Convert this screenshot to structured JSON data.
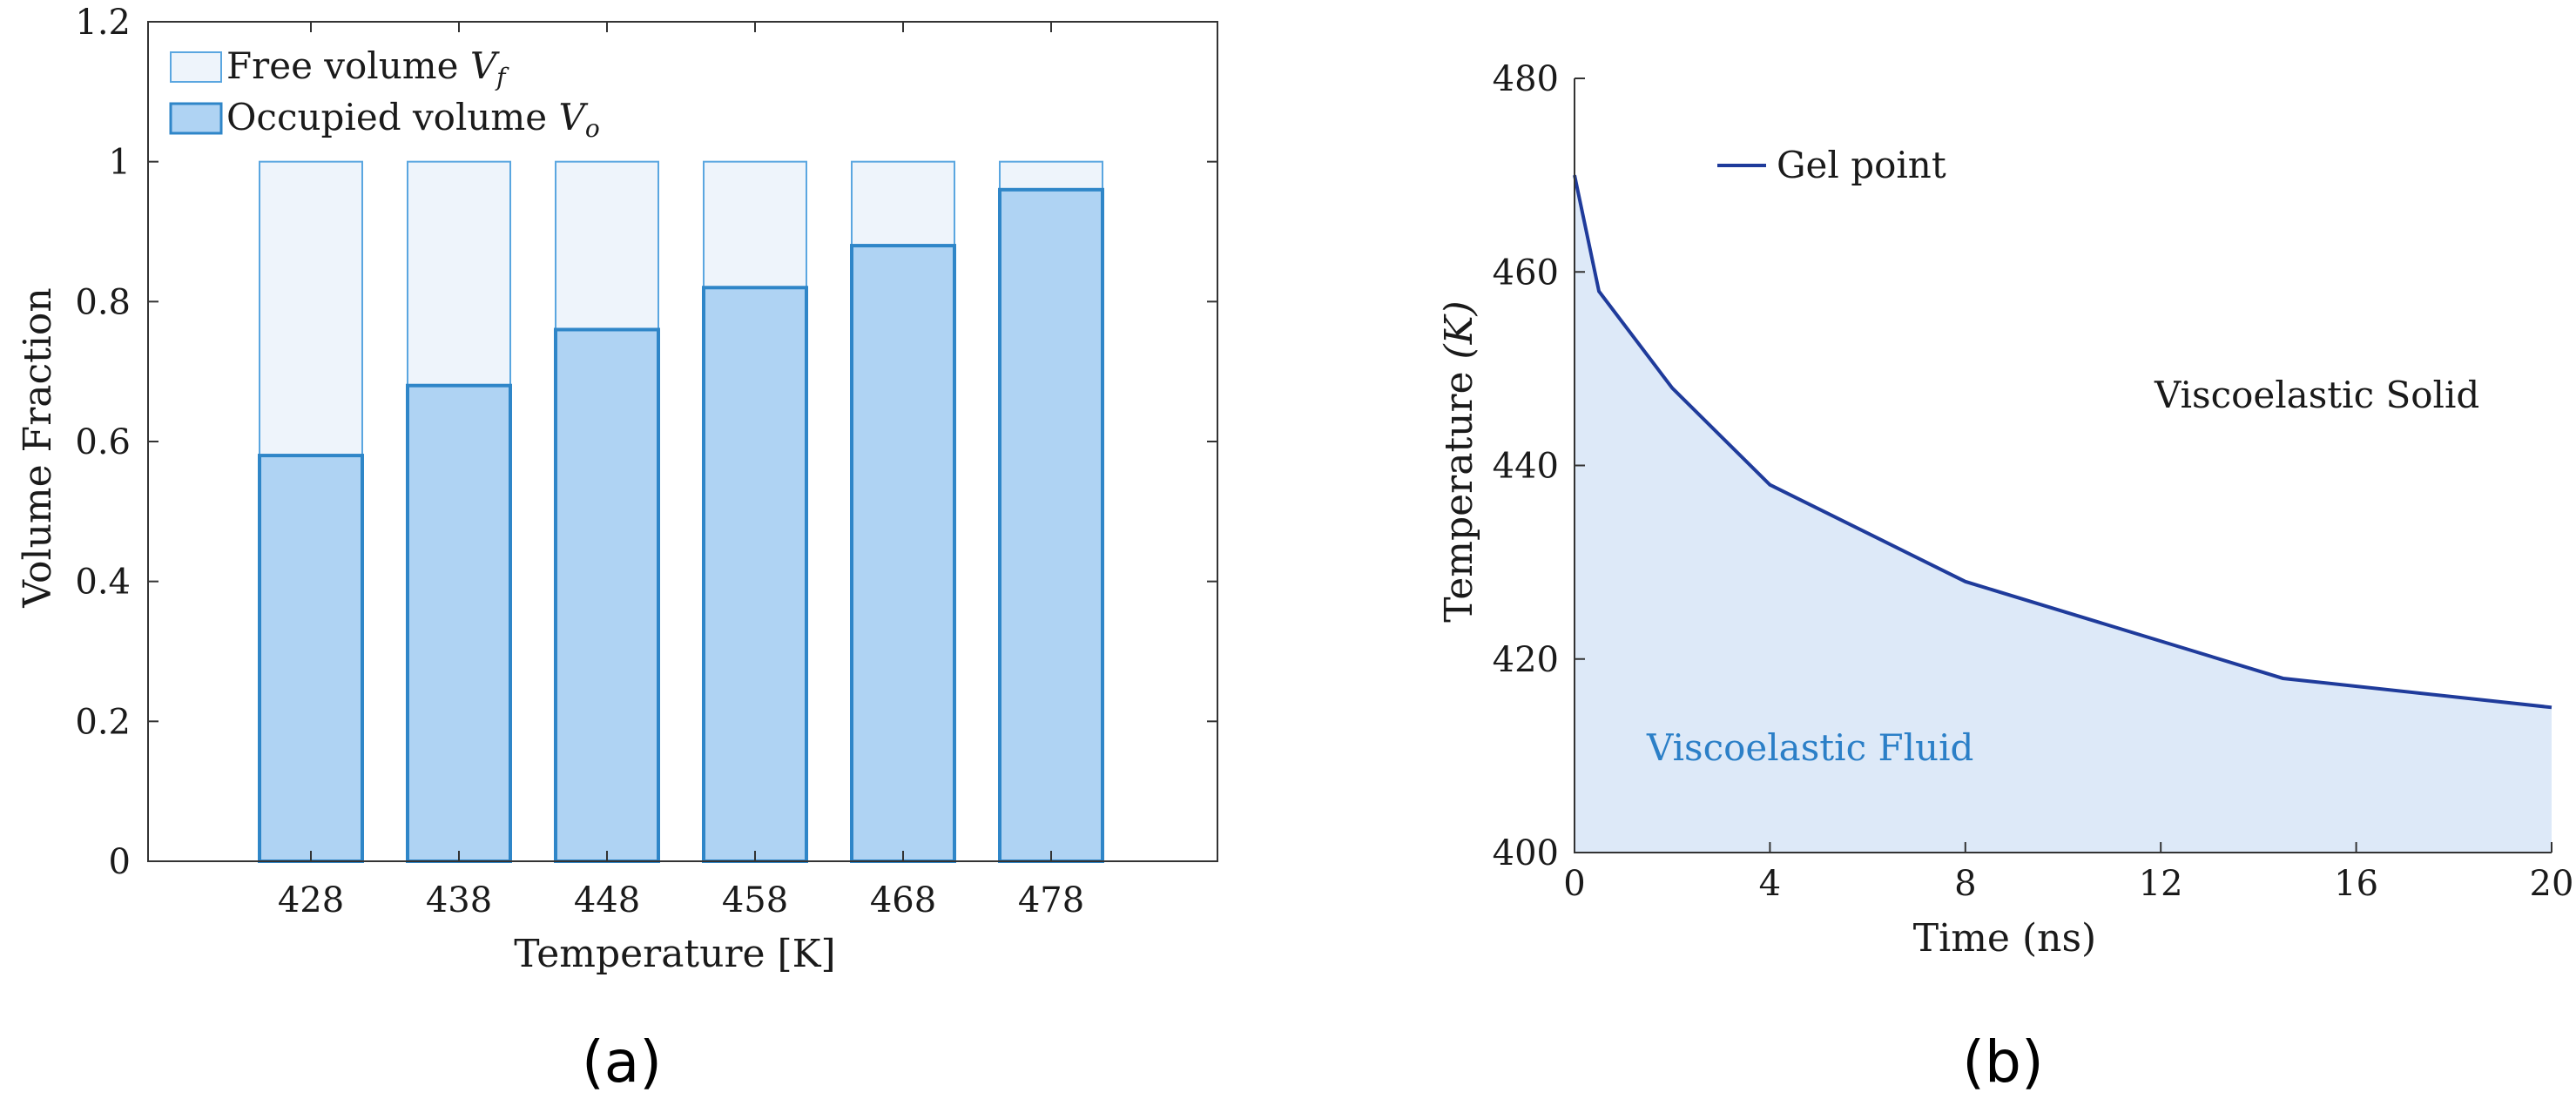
{
  "colors": {
    "free_fill": "#eef4fb",
    "free_stroke": "#5aa6e0",
    "occupied_fill": "#afd3f3",
    "occupied_stroke": "#2f86c8",
    "line": "#1f3b9b",
    "fluid_area": "#dde9f8",
    "fluid_text": "#2b7fc7",
    "axis": "#333333"
  },
  "chart_data": [
    {
      "type": "bar",
      "stacked": true,
      "caption": "(a)",
      "categories": [
        "428",
        "438",
        "448",
        "458",
        "468",
        "478"
      ],
      "series": [
        {
          "name": "Occupied volume",
          "symbol": "V",
          "subscript": "o",
          "values": [
            0.58,
            0.68,
            0.76,
            0.82,
            0.88,
            0.96
          ]
        },
        {
          "name": "Free volume",
          "symbol": "V",
          "subscript": "f",
          "values": [
            0.42,
            0.32,
            0.24,
            0.18,
            0.12,
            0.04
          ]
        }
      ],
      "legend": [
        {
          "label": "Free volume ",
          "symbol": "V",
          "subscript": "f"
        },
        {
          "label": "Occupied volume ",
          "symbol": "V",
          "subscript": "o"
        }
      ],
      "xlabel": "Temperature [K]",
      "ylabel": "Volume Fraction",
      "ylim": [
        0,
        1.2
      ],
      "yticks": [
        0,
        0.2,
        0.4,
        0.6,
        0.8,
        1,
        1.2
      ],
      "ytick_labels": [
        "0",
        "0.2",
        "0.4",
        "0.6",
        "0.8",
        "1",
        "1.2"
      ],
      "legend_position": "top-left"
    },
    {
      "type": "area",
      "caption": "(b)",
      "series": [
        {
          "name": "Gel point",
          "x": [
            0,
            0.5,
            2,
            4,
            8,
            14.5,
            20
          ],
          "y": [
            470,
            458,
            448,
            438,
            428,
            418,
            415
          ]
        }
      ],
      "xlabel": "Time (ns)",
      "ylabel_prefix": "Temperature ",
      "ylabel_unit": "(K)",
      "xlim": [
        0,
        20
      ],
      "ylim": [
        400,
        480
      ],
      "xticks": [
        0,
        4,
        8,
        12,
        16,
        20
      ],
      "xtick_labels": [
        "0",
        "4",
        "8",
        "12",
        "16",
        "20"
      ],
      "yticks": [
        400,
        420,
        440,
        460,
        480
      ],
      "ytick_labels": [
        "400",
        "420",
        "440",
        "460",
        "480"
      ],
      "annotations": {
        "upper_region": "Viscoelastic Solid",
        "lower_region": "Viscoelastic Fluid"
      },
      "legend": [
        "Gel point"
      ],
      "legend_position": "top-left"
    }
  ]
}
